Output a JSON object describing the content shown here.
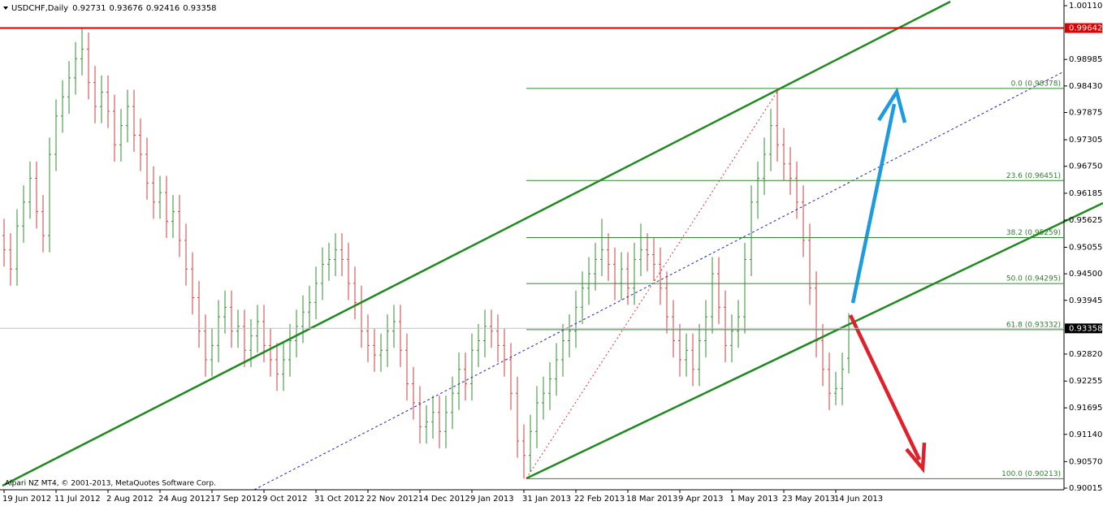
{
  "chart_data": {
    "type": "ohlc",
    "symbol": "USDCHF,Daily",
    "footer": "Alpari NZ MT4, © 2001-2013, MetaQuotes Software Corp.",
    "up_color": "#2e8b2e",
    "down_color": "#d23c3c",
    "ylim": [
      0.89998,
      1.00144
    ],
    "yticks": [
      {
        "value": 1.0011,
        "label": "1.00110"
      },
      0.98985,
      {
        "value": 0.9843,
        "label": "0.98430"
      },
      0.97875,
      0.97305,
      {
        "value": 0.9675,
        "label": "0.96750"
      },
      0.96185,
      0.95625,
      0.95055,
      {
        "value": 0.945,
        "label": "0.94500"
      },
      0.93945,
      {
        "value": 0.9282,
        "label": "0.92820"
      },
      0.92255,
      0.91695,
      {
        "value": 0.9114,
        "label": "0.91140"
      },
      {
        "value": 0.9057,
        "label": "0.90570"
      },
      0.90015
    ],
    "xticks": [
      {
        "value": 0,
        "label": "19 Jun 2012"
      },
      {
        "value": 8,
        "label": "11 Jul 2012"
      },
      {
        "value": 16,
        "label": "2 Aug 2012"
      },
      {
        "value": 24,
        "label": "24 Aug 2012"
      },
      {
        "value": 32,
        "label": "17 Sep 2012"
      },
      {
        "value": 40,
        "label": "9 Oct 2012"
      },
      {
        "value": 48,
        "label": "31 Oct 2012"
      },
      {
        "value": 56,
        "label": "22 Nov 2012"
      },
      {
        "value": 64,
        "label": "14 Dec 2012"
      },
      {
        "value": 72,
        "label": "9 Jan 2013"
      },
      {
        "value": 80,
        "label": "31 Jan 2013"
      },
      {
        "value": 88,
        "label": "22 Feb 2013"
      },
      {
        "value": 96,
        "label": "18 Mar 2013"
      },
      {
        "value": 104,
        "label": "9 Apr 2013"
      },
      {
        "value": 112,
        "label": "1 May 2013"
      },
      {
        "value": 120,
        "label": "23 May 2013"
      },
      {
        "value": 128,
        "label": "14 Jun 2013"
      }
    ],
    "levels": [
      {
        "price": 0.99642,
        "color": "#e00000"
      }
    ],
    "fibo": [
      {
        "label": "0.0 (0.98378)",
        "price": 0.98378
      },
      {
        "label": "23.6 (0.96451)",
        "price": 0.96451
      },
      {
        "label": "38.2 (0.95259)",
        "price": 0.95259
      },
      {
        "label": "50.0 (0.94295)",
        "price": 0.94295
      },
      {
        "label": "61.8 (0.93332)",
        "price": 0.93332
      },
      {
        "label": "100.0 (0.90213)",
        "price": 0.90213
      }
    ],
    "ohlc": [
      [
        0.953,
        0.9565,
        0.9465,
        0.95
      ],
      [
        0.95,
        0.9535,
        0.9425,
        0.946
      ],
      [
        0.946,
        0.9585,
        0.9425,
        0.955
      ],
      [
        0.955,
        0.9635,
        0.9515,
        0.96
      ],
      [
        0.96,
        0.9685,
        0.9565,
        0.965
      ],
      [
        0.965,
        0.9685,
        0.9545,
        0.958
      ],
      [
        0.958,
        0.9615,
        0.9495,
        0.953
      ],
      [
        0.953,
        0.9735,
        0.9495,
        0.97
      ],
      [
        0.97,
        0.9815,
        0.9665,
        0.978
      ],
      [
        0.978,
        0.9855,
        0.9745,
        0.982
      ],
      [
        0.982,
        0.9895,
        0.9785,
        0.986
      ],
      [
        0.986,
        0.9935,
        0.9825,
        0.99
      ],
      [
        0.99,
        0.9964,
        0.9865,
        0.992
      ],
      [
        0.992,
        0.9955,
        0.9815,
        0.985
      ],
      [
        0.985,
        0.9885,
        0.9765,
        0.98
      ],
      [
        0.98,
        0.9865,
        0.9765,
        0.983
      ],
      [
        0.983,
        0.9865,
        0.9755,
        0.979
      ],
      [
        0.979,
        0.9825,
        0.9685,
        0.972
      ],
      [
        0.972,
        0.9795,
        0.9685,
        0.976
      ],
      [
        0.976,
        0.9835,
        0.9725,
        0.98
      ],
      [
        0.98,
        0.9835,
        0.9705,
        0.974
      ],
      [
        0.974,
        0.9775,
        0.9665,
        0.97
      ],
      [
        0.97,
        0.9735,
        0.9605,
        0.964
      ],
      [
        0.964,
        0.9675,
        0.9565,
        0.96
      ],
      [
        0.96,
        0.9655,
        0.9565,
        0.962
      ],
      [
        0.962,
        0.9655,
        0.9525,
        0.956
      ],
      [
        0.956,
        0.9615,
        0.9525,
        0.958
      ],
      [
        0.958,
        0.9615,
        0.9485,
        0.952
      ],
      [
        0.952,
        0.9555,
        0.9425,
        0.946
      ],
      [
        0.946,
        0.9495,
        0.9365,
        0.94
      ],
      [
        0.94,
        0.9435,
        0.9295,
        0.933
      ],
      [
        0.933,
        0.9365,
        0.9235,
        0.927
      ],
      [
        0.927,
        0.9335,
        0.9235,
        0.93
      ],
      [
        0.93,
        0.9395,
        0.9265,
        0.936
      ],
      [
        0.936,
        0.9415,
        0.9325,
        0.938
      ],
      [
        0.938,
        0.9415,
        0.9295,
        0.933
      ],
      [
        0.933,
        0.9375,
        0.9295,
        0.934
      ],
      [
        0.934,
        0.9375,
        0.9255,
        0.929
      ],
      [
        0.929,
        0.9355,
        0.9255,
        0.932
      ],
      [
        0.932,
        0.9385,
        0.9285,
        0.935
      ],
      [
        0.935,
        0.9385,
        0.9265,
        0.93
      ],
      [
        0.93,
        0.9335,
        0.9235,
        0.927
      ],
      [
        0.927,
        0.9305,
        0.9205,
        0.924
      ],
      [
        0.924,
        0.9305,
        0.9205,
        0.927
      ],
      [
        0.927,
        0.9345,
        0.9235,
        0.931
      ],
      [
        0.931,
        0.9375,
        0.9275,
        0.934
      ],
      [
        0.934,
        0.9405,
        0.9305,
        0.937
      ],
      [
        0.937,
        0.9425,
        0.9335,
        0.939
      ],
      [
        0.939,
        0.9465,
        0.9355,
        0.943
      ],
      [
        0.943,
        0.9505,
        0.9395,
        0.947
      ],
      [
        0.947,
        0.9515,
        0.9435,
        0.948
      ],
      [
        0.948,
        0.9535,
        0.9445,
        0.95
      ],
      [
        0.95,
        0.9535,
        0.9445,
        0.948
      ],
      [
        0.948,
        0.9515,
        0.9395,
        0.943
      ],
      [
        0.943,
        0.9465,
        0.9355,
        0.939
      ],
      [
        0.939,
        0.9425,
        0.9295,
        0.933
      ],
      [
        0.933,
        0.9365,
        0.9265,
        0.93
      ],
      [
        0.93,
        0.9335,
        0.9245,
        0.928
      ],
      [
        0.928,
        0.9325,
        0.9245,
        0.929
      ],
      [
        0.929,
        0.9365,
        0.9255,
        0.933
      ],
      [
        0.933,
        0.9385,
        0.9295,
        0.935
      ],
      [
        0.935,
        0.9385,
        0.9255,
        0.929
      ],
      [
        0.929,
        0.9325,
        0.9185,
        0.922
      ],
      [
        0.922,
        0.9255,
        0.9145,
        0.918
      ],
      [
        0.918,
        0.9215,
        0.9095,
        0.913
      ],
      [
        0.913,
        0.9175,
        0.9095,
        0.914
      ],
      [
        0.914,
        0.9195,
        0.9105,
        0.916
      ],
      [
        0.916,
        0.9195,
        0.9085,
        0.912
      ],
      [
        0.912,
        0.9195,
        0.9085,
        0.916
      ],
      [
        0.916,
        0.9235,
        0.9125,
        0.92
      ],
      [
        0.92,
        0.9285,
        0.9165,
        0.925
      ],
      [
        0.925,
        0.9285,
        0.9185,
        0.922
      ],
      [
        0.922,
        0.9325,
        0.9185,
        0.929
      ],
      [
        0.929,
        0.9345,
        0.9255,
        0.931
      ],
      [
        0.931,
        0.9375,
        0.9275,
        0.934
      ],
      [
        0.934,
        0.9375,
        0.9295,
        0.933
      ],
      [
        0.933,
        0.9365,
        0.9265,
        0.93
      ],
      [
        0.93,
        0.9335,
        0.9235,
        0.927
      ],
      [
        0.927,
        0.9305,
        0.9165,
        0.92
      ],
      [
        0.92,
        0.9235,
        0.9065,
        0.91
      ],
      [
        0.91,
        0.9135,
        0.90213,
        0.907
      ],
      [
        0.907,
        0.9155,
        0.9035,
        0.912
      ],
      [
        0.912,
        0.9215,
        0.9085,
        0.918
      ],
      [
        0.918,
        0.9235,
        0.9145,
        0.92
      ],
      [
        0.92,
        0.9265,
        0.9165,
        0.923
      ],
      [
        0.923,
        0.9305,
        0.9195,
        0.927
      ],
      [
        0.927,
        0.9345,
        0.9235,
        0.931
      ],
      [
        0.931,
        0.9365,
        0.9275,
        0.933
      ],
      [
        0.933,
        0.9415,
        0.9295,
        0.938
      ],
      [
        0.938,
        0.9455,
        0.9345,
        0.942
      ],
      [
        0.942,
        0.9485,
        0.9385,
        0.945
      ],
      [
        0.945,
        0.9515,
        0.9415,
        0.948
      ],
      [
        0.948,
        0.9565,
        0.9445,
        0.95
      ],
      [
        0.95,
        0.9535,
        0.9435,
        0.947
      ],
      [
        0.947,
        0.9505,
        0.9395,
        0.943
      ],
      [
        0.943,
        0.9495,
        0.9395,
        0.946
      ],
      [
        0.946,
        0.9495,
        0.9385,
        0.942
      ],
      [
        0.942,
        0.9515,
        0.9385,
        0.948
      ],
      [
        0.948,
        0.9555,
        0.9445,
        0.95
      ],
      [
        0.95,
        0.9535,
        0.9455,
        0.949
      ],
      [
        0.949,
        0.9525,
        0.9435,
        0.947
      ],
      [
        0.947,
        0.9505,
        0.9385,
        0.942
      ],
      [
        0.942,
        0.9455,
        0.9325,
        0.936
      ],
      [
        0.936,
        0.9395,
        0.9275,
        0.931
      ],
      [
        0.931,
        0.9345,
        0.9235,
        0.927
      ],
      [
        0.927,
        0.9325,
        0.9235,
        0.929
      ],
      [
        0.929,
        0.9325,
        0.9215,
        0.925
      ],
      [
        0.925,
        0.9345,
        0.9215,
        0.931
      ],
      [
        0.931,
        0.9395,
        0.9275,
        0.936
      ],
      [
        0.936,
        0.9485,
        0.9325,
        0.945
      ],
      [
        0.945,
        0.9485,
        0.9345,
        0.938
      ],
      [
        0.938,
        0.9415,
        0.9265,
        0.93
      ],
      [
        0.93,
        0.9365,
        0.9265,
        0.933
      ],
      [
        0.933,
        0.9395,
        0.9295,
        0.936
      ],
      [
        0.936,
        0.9515,
        0.9325,
        0.948
      ],
      [
        0.948,
        0.9635,
        0.9445,
        0.96
      ],
      [
        0.96,
        0.9685,
        0.9565,
        0.965
      ],
      [
        0.965,
        0.9735,
        0.9615,
        0.97
      ],
      [
        0.97,
        0.9795,
        0.9665,
        0.976
      ],
      [
        0.976,
        0.98378,
        0.9685,
        0.972
      ],
      [
        0.972,
        0.9755,
        0.9645,
        0.968
      ],
      [
        0.968,
        0.9715,
        0.9615,
        0.965
      ],
      [
        0.965,
        0.9685,
        0.9565,
        0.96
      ],
      [
        0.96,
        0.9635,
        0.9485,
        0.952
      ],
      [
        0.952,
        0.9555,
        0.9385,
        0.942
      ],
      [
        0.942,
        0.9455,
        0.9275,
        0.931
      ],
      [
        0.931,
        0.9345,
        0.9215,
        0.925
      ],
      [
        0.925,
        0.9285,
        0.9165,
        0.92
      ],
      [
        0.92,
        0.9245,
        0.9175,
        0.921
      ],
      [
        0.921,
        0.9285,
        0.9175,
        0.925
      ],
      [
        0.92731,
        0.93676,
        0.92416,
        0.93358
      ]
    ]
  }
}
